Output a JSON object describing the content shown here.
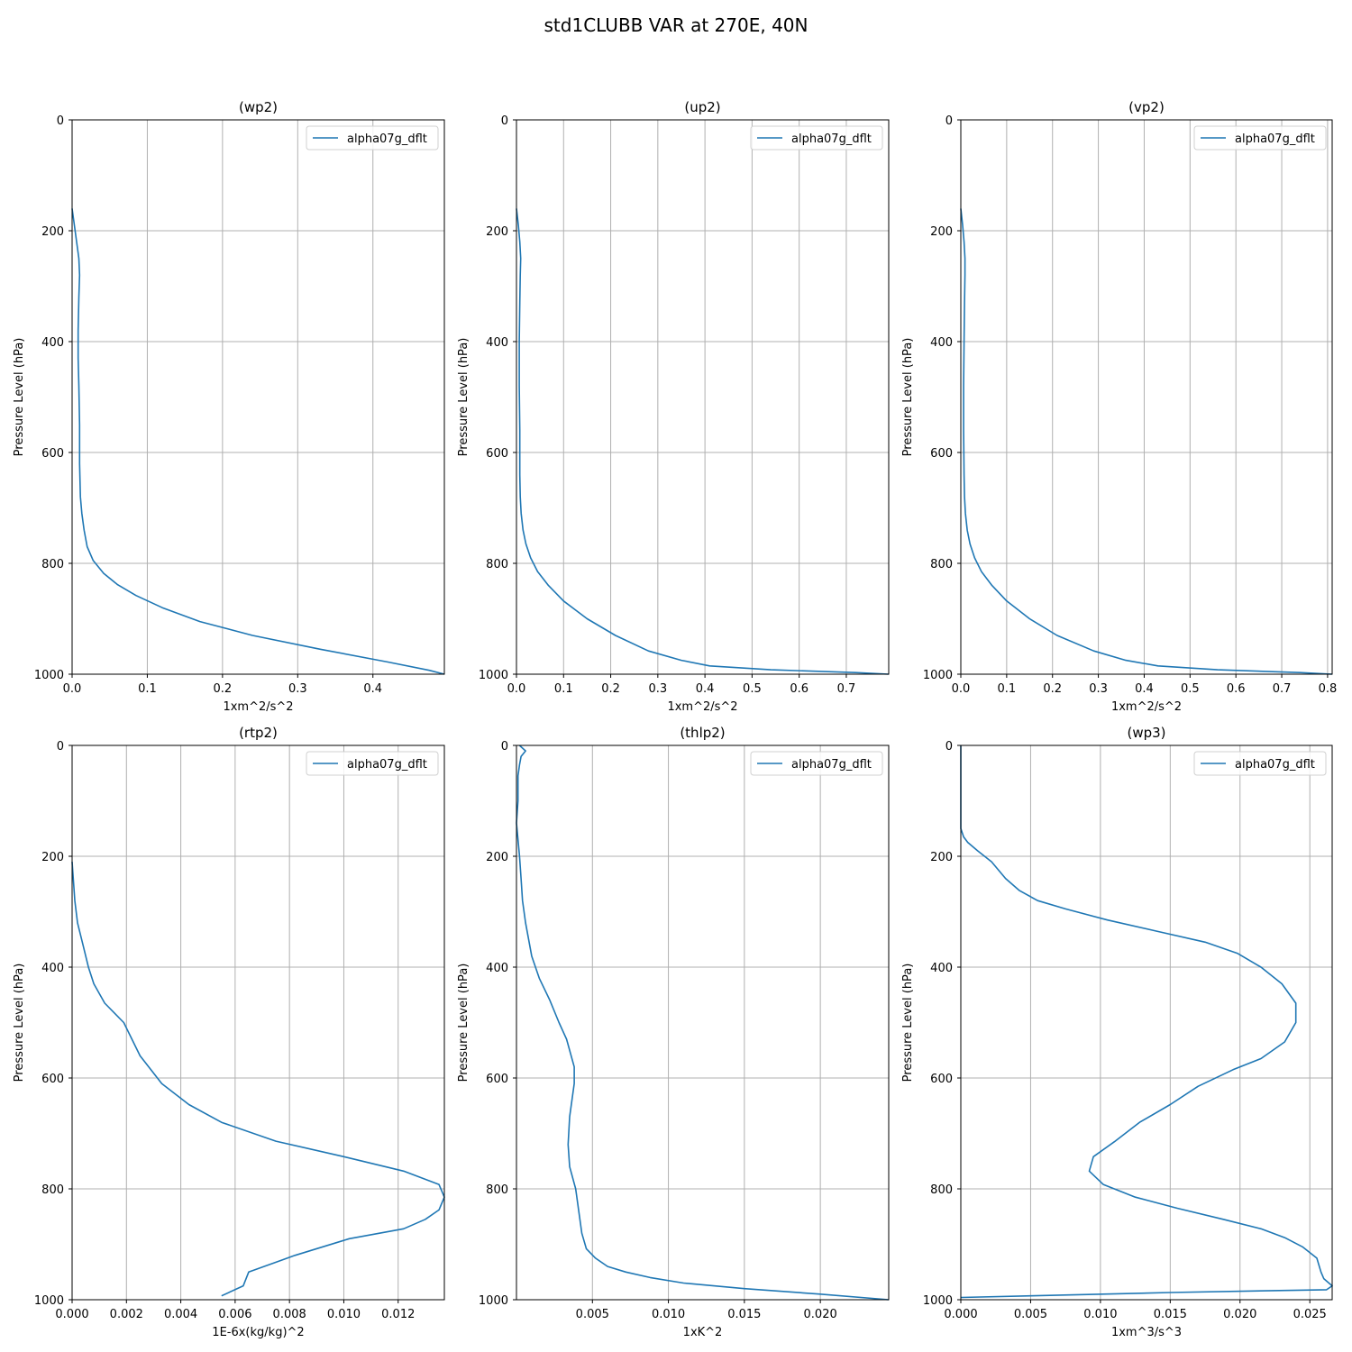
{
  "suptitle": "std1CLUBB VAR at 270E, 40N",
  "line_color": "#1f77b4",
  "grid_color": "#b0b0b0",
  "chart_data": [
    {
      "type": "line",
      "title": "(wp2)",
      "xlabel": "1xm^2/s^2",
      "ylabel": "Pressure Level (hPa)",
      "xlim": [
        0,
        0.495
      ],
      "ylim": [
        1000,
        0
      ],
      "xticks": [
        0.0,
        0.1,
        0.2,
        0.3,
        0.4
      ],
      "xtick_labels": [
        "0.0",
        "0.1",
        "0.2",
        "0.3",
        "0.4"
      ],
      "yticks": [
        0,
        200,
        400,
        600,
        800,
        1000
      ],
      "grid": true,
      "legend_loc": "upper right",
      "series": [
        {
          "name": "alpha07g_dflt",
          "x": [
            0.0,
            0.003,
            0.006,
            0.009,
            0.01,
            0.009,
            0.008,
            0.008,
            0.009,
            0.01,
            0.01,
            0.011,
            0.013,
            0.016,
            0.02,
            0.028,
            0.042,
            0.06,
            0.085,
            0.12,
            0.17,
            0.24,
            0.33,
            0.42,
            0.475,
            0.495
          ],
          "y": [
            160,
            190,
            220,
            250,
            280,
            320,
            380,
            430,
            480,
            550,
            620,
            680,
            710,
            740,
            770,
            795,
            818,
            838,
            858,
            880,
            905,
            930,
            955,
            978,
            993,
            1000
          ]
        }
      ]
    },
    {
      "type": "line",
      "title": "(up2)",
      "xlabel": "1xm^2/s^2",
      "ylabel": "Pressure Level (hPa)",
      "xlim": [
        0,
        0.79
      ],
      "ylim": [
        1000,
        0
      ],
      "xticks": [
        0.0,
        0.1,
        0.2,
        0.3,
        0.4,
        0.5,
        0.6,
        0.7
      ],
      "xtick_labels": [
        "0.0",
        "0.1",
        "0.2",
        "0.3",
        "0.4",
        "0.5",
        "0.6",
        "0.7"
      ],
      "yticks": [
        0,
        200,
        400,
        600,
        800,
        1000
      ],
      "grid": true,
      "legend_loc": "upper right",
      "series": [
        {
          "name": "alpha07g_dflt",
          "x": [
            0.0,
            0.004,
            0.007,
            0.009,
            0.008,
            0.007,
            0.006,
            0.006,
            0.007,
            0.007,
            0.008,
            0.01,
            0.014,
            0.02,
            0.03,
            0.045,
            0.068,
            0.1,
            0.15,
            0.21,
            0.28,
            0.35,
            0.41,
            0.54,
            0.72,
            0.79
          ],
          "y": [
            160,
            190,
            220,
            250,
            280,
            330,
            400,
            480,
            560,
            640,
            680,
            710,
            740,
            765,
            790,
            815,
            840,
            868,
            900,
            930,
            958,
            975,
            985,
            992,
            997,
            1000
          ]
        }
      ]
    },
    {
      "type": "line",
      "title": "(vp2)",
      "xlabel": "1xm^2/s^2",
      "ylabel": "Pressure Level (hPa)",
      "xlim": [
        0,
        0.81
      ],
      "ylim": [
        1000,
        0
      ],
      "xticks": [
        0.0,
        0.1,
        0.2,
        0.3,
        0.4,
        0.5,
        0.6,
        0.7,
        0.8
      ],
      "xtick_labels": [
        "0.0",
        "0.1",
        "0.2",
        "0.3",
        "0.4",
        "0.5",
        "0.6",
        "0.7",
        "0.8"
      ],
      "yticks": [
        0,
        200,
        400,
        600,
        800,
        1000
      ],
      "grid": true,
      "legend_loc": "upper right",
      "series": [
        {
          "name": "alpha07g_dflt",
          "x": [
            0.0,
            0.004,
            0.007,
            0.009,
            0.009,
            0.008,
            0.007,
            0.006,
            0.006,
            0.007,
            0.008,
            0.01,
            0.014,
            0.02,
            0.03,
            0.045,
            0.068,
            0.1,
            0.15,
            0.21,
            0.29,
            0.36,
            0.43,
            0.56,
            0.74,
            0.81
          ],
          "y": [
            160,
            190,
            220,
            250,
            280,
            330,
            400,
            480,
            560,
            640,
            680,
            710,
            740,
            765,
            790,
            815,
            840,
            868,
            900,
            930,
            958,
            975,
            985,
            992,
            997,
            1000
          ]
        }
      ]
    },
    {
      "type": "line",
      "title": "(rtp2)",
      "xlabel": "1E-6x(kg/kg)^2",
      "ylabel": "Pressure Level (hPa)",
      "xlim": [
        0,
        0.0137
      ],
      "ylim": [
        1000,
        0
      ],
      "xticks": [
        0.0,
        0.002,
        0.004,
        0.006,
        0.008,
        0.01,
        0.012
      ],
      "xtick_labels": [
        "0.000",
        "0.002",
        "0.004",
        "0.006",
        "0.008",
        "0.010",
        "0.012"
      ],
      "yticks": [
        0,
        200,
        400,
        600,
        800,
        1000
      ],
      "grid": true,
      "legend_loc": "upper right",
      "series": [
        {
          "name": "alpha07g_dflt",
          "x": [
            0.0,
            0.0001,
            0.0002,
            0.0004,
            0.0006,
            0.0008,
            0.0012,
            0.0019,
            0.0025,
            0.0033,
            0.0043,
            0.0055,
            0.0075,
            0.01,
            0.0122,
            0.0135,
            0.0137,
            0.0135,
            0.013,
            0.0122,
            0.0102,
            0.0082,
            0.0065,
            0.0063,
            0.0055
          ],
          "y": [
            210,
            280,
            320,
            360,
            400,
            430,
            465,
            500,
            560,
            610,
            648,
            680,
            714,
            742,
            768,
            792,
            815,
            838,
            855,
            872,
            890,
            920,
            950,
            975,
            993
          ]
        }
      ]
    },
    {
      "type": "line",
      "title": "(thlp2)",
      "xlabel": "1xK^2",
      "ylabel": "Pressure Level (hPa)",
      "xlim": [
        0,
        0.0245
      ],
      "ylim": [
        1000,
        0
      ],
      "xticks": [
        0.005,
        0.01,
        0.015,
        0.02
      ],
      "xtick_labels": [
        "0.005",
        "0.010",
        "0.015",
        "0.020"
      ],
      "yticks": [
        0,
        200,
        400,
        600,
        800,
        1000
      ],
      "grid": true,
      "legend_loc": "upper right",
      "series": [
        {
          "name": "alpha07g_dflt",
          "x": [
            0.0002,
            0.0006,
            0.0003,
            0.0002,
            0.0001,
            0.0001,
            0.0,
            0.0001,
            0.0002,
            0.0003,
            0.0004,
            0.0006,
            0.001,
            0.0015,
            0.0022,
            0.0028,
            0.0033,
            0.0038,
            0.0038,
            0.0035,
            0.0034,
            0.0035,
            0.0039,
            0.0041,
            0.0043,
            0.0046,
            0.0052,
            0.006,
            0.0072,
            0.0088,
            0.011,
            0.015,
            0.02,
            0.0245
          ],
          "y": [
            0,
            10,
            20,
            35,
            55,
            100,
            140,
            170,
            200,
            240,
            280,
            320,
            380,
            420,
            460,
            500,
            530,
            580,
            610,
            670,
            720,
            760,
            800,
            840,
            880,
            908,
            925,
            940,
            950,
            960,
            970,
            980,
            990,
            1000
          ]
        }
      ]
    },
    {
      "type": "line",
      "title": "(wp3)",
      "xlabel": "1xm^3/s^3",
      "ylabel": "Pressure Level (hPa)",
      "xlim": [
        0,
        0.0266
      ],
      "ylim": [
        1000,
        0
      ],
      "xticks": [
        0.0,
        0.005,
        0.01,
        0.015,
        0.02,
        0.025
      ],
      "xtick_labels": [
        "0.000",
        "0.005",
        "0.010",
        "0.015",
        "0.020",
        "0.025"
      ],
      "yticks": [
        0,
        200,
        400,
        600,
        800,
        1000
      ],
      "grid": true,
      "legend_loc": "upper right",
      "series": [
        {
          "name": "alpha07g_dflt",
          "x": [
            0.0,
            0.0,
            0.0002,
            0.0005,
            0.0012,
            0.0022,
            0.0032,
            0.0042,
            0.0055,
            0.0075,
            0.0105,
            0.014,
            0.0175,
            0.0198,
            0.0215,
            0.023,
            0.024,
            0.024,
            0.0232,
            0.0215,
            0.0195,
            0.017,
            0.015,
            0.0128,
            0.011,
            0.0095,
            0.0092,
            0.0102,
            0.0125,
            0.0155,
            0.0188,
            0.0215,
            0.0232,
            0.0245,
            0.0255,
            0.0258,
            0.026,
            0.0266,
            0.0262,
            0.015,
            0.005,
            0.0
          ],
          "y": [
            0,
            150,
            165,
            175,
            190,
            210,
            240,
            262,
            280,
            295,
            315,
            335,
            355,
            375,
            400,
            430,
            465,
            500,
            535,
            565,
            585,
            615,
            648,
            680,
            715,
            742,
            768,
            792,
            815,
            835,
            855,
            872,
            888,
            905,
            925,
            950,
            962,
            975,
            982,
            987,
            993,
            996
          ]
        }
      ]
    }
  ]
}
